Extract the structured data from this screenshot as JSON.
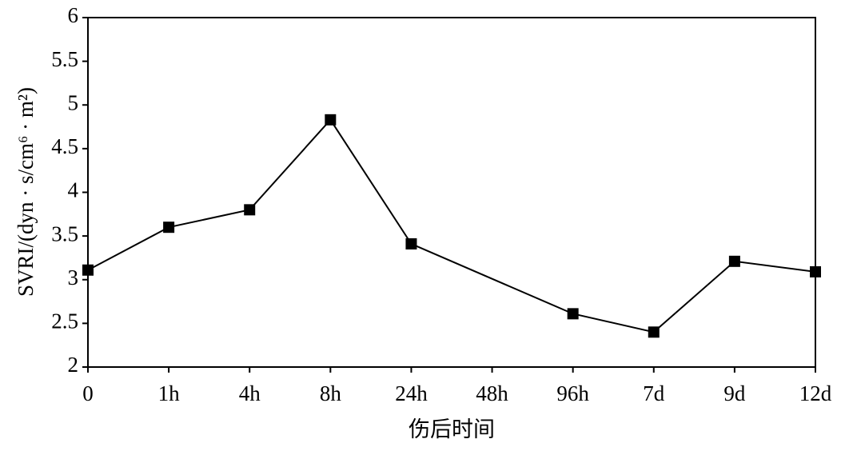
{
  "chart_data": {
    "type": "line",
    "y_label": "SVRI/(dyn · s/cm⁶ · m²)",
    "x_label": "伤后时间",
    "categories": [
      "0",
      "1h",
      "4h",
      "8h",
      "24h",
      "48h",
      "96h",
      "7d",
      "9d",
      "12d"
    ],
    "series": [
      {
        "color": "#000000",
        "values": [
          3.11,
          3.6,
          3.8,
          4.83,
          3.41,
          null,
          2.61,
          2.4,
          3.21,
          3.09
        ]
      }
    ],
    "connect_gaps": true,
    "ylim": [
      2,
      6
    ],
    "yticks": [
      2,
      2.5,
      3,
      3.5,
      4,
      4.5,
      5,
      5.5,
      6
    ],
    "grid": false
  }
}
